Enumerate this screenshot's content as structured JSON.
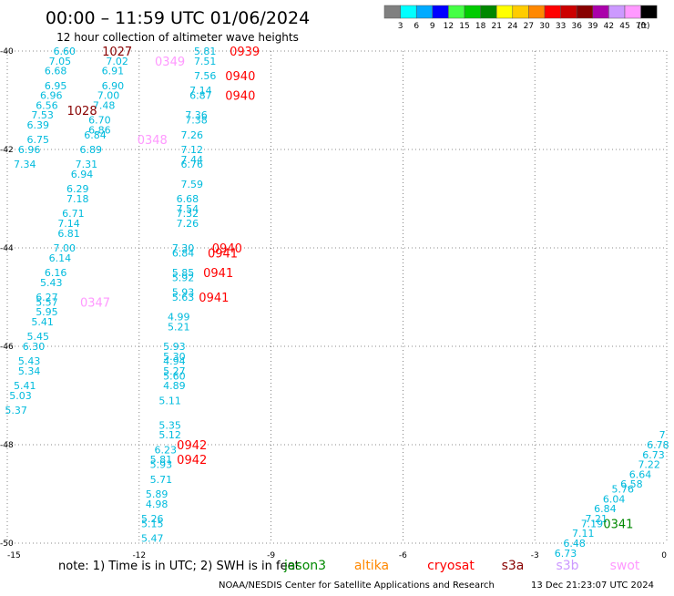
{
  "header": {
    "title": "00:00 – 11:59 UTC 01/06/2024",
    "subtitle": "12 hour collection of altimeter wave heights"
  },
  "legend": {
    "unit": "(ft)",
    "bins": [
      {
        "label": "3",
        "color": "#808080"
      },
      {
        "label": "6",
        "color": "#00ffff"
      },
      {
        "label": "9",
        "color": "#00aaff"
      },
      {
        "label": "12",
        "color": "#0000ff"
      },
      {
        "label": "15",
        "color": "#44ff44"
      },
      {
        "label": "18",
        "color": "#00cc00"
      },
      {
        "label": "21",
        "color": "#008800"
      },
      {
        "label": "24",
        "color": "#ffff00"
      },
      {
        "label": "27",
        "color": "#ffcc00"
      },
      {
        "label": "30",
        "color": "#ff8800"
      },
      {
        "label": "33",
        "color": "#ff0000"
      },
      {
        "label": "36",
        "color": "#cc0000"
      },
      {
        "label": "39",
        "color": "#880000"
      },
      {
        "label": "42",
        "color": "#aa00aa"
      },
      {
        "label": "45",
        "color": "#cc99ff"
      },
      {
        "label": "70",
        "color": "#ff99ff"
      },
      {
        "label": "",
        "color": "#000000"
      }
    ]
  },
  "footer": {
    "note": "note:  1) Time is in UTC; 2) SWH is in feet",
    "credit": "NOAA/NESDIS Center for Satellite Applications and Research",
    "timestamp": "13 Dec 21:23:07 UTC 2024"
  },
  "satellites": [
    {
      "name": "jason3",
      "color": "#008800"
    },
    {
      "name": "altika",
      "color": "#ff8800"
    },
    {
      "name": "cryosat",
      "color": "#ff0000"
    },
    {
      "name": "s3a",
      "color": "#880000"
    },
    {
      "name": "s3b",
      "color": "#cc99ff"
    },
    {
      "name": "swot",
      "color": "#ff99ff"
    }
  ],
  "chart_data": {
    "type": "scatter",
    "xlim": [
      -15,
      0
    ],
    "ylim": [
      -50,
      -40
    ],
    "x_ticks": [
      "-15",
      "-12",
      "-9",
      "-6",
      "-3",
      "0"
    ],
    "y_ticks": [
      "-40",
      "-42",
      "-44",
      "-46",
      "-48",
      "-50"
    ],
    "grid": true,
    "value_color": "#00bbdd",
    "wave_heights": [
      {
        "x": -13.7,
        "y": -40.0,
        "v": "6.60"
      },
      {
        "x": -13.8,
        "y": -40.2,
        "v": "7.05"
      },
      {
        "x": -13.9,
        "y": -40.4,
        "v": "6.68"
      },
      {
        "x": -13.9,
        "y": -40.7,
        "v": "6.95"
      },
      {
        "x": -14.0,
        "y": -40.9,
        "v": "6.96"
      },
      {
        "x": -14.1,
        "y": -41.1,
        "v": "6.56"
      },
      {
        "x": -14.2,
        "y": -41.3,
        "v": "7.53"
      },
      {
        "x": -14.3,
        "y": -41.5,
        "v": "6.39"
      },
      {
        "x": -14.3,
        "y": -41.8,
        "v": "6.75"
      },
      {
        "x": -14.5,
        "y": -42.0,
        "v": "6.96"
      },
      {
        "x": -14.6,
        "y": -42.3,
        "v": "7.34"
      },
      {
        "x": -12.5,
        "y": -40.2,
        "v": "7.02"
      },
      {
        "x": -12.6,
        "y": -40.4,
        "v": "6.91"
      },
      {
        "x": -12.6,
        "y": -40.7,
        "v": "6.90"
      },
      {
        "x": -12.7,
        "y": -40.9,
        "v": "7.00"
      },
      {
        "x": -12.8,
        "y": -41.1,
        "v": "7.48"
      },
      {
        "x": -12.9,
        "y": -41.4,
        "v": "6.70"
      },
      {
        "x": -12.9,
        "y": -41.6,
        "v": "6.86"
      },
      {
        "x": -13.0,
        "y": -41.7,
        "v": "6.84"
      },
      {
        "x": -13.1,
        "y": -42.0,
        "v": "6.89"
      },
      {
        "x": -13.2,
        "y": -42.3,
        "v": "7.31"
      },
      {
        "x": -13.3,
        "y": -42.5,
        "v": "6.94"
      },
      {
        "x": -13.4,
        "y": -42.8,
        "v": "6.29"
      },
      {
        "x": -13.4,
        "y": -43.0,
        "v": "7.18"
      },
      {
        "x": -13.5,
        "y": -43.3,
        "v": "6.71"
      },
      {
        "x": -13.6,
        "y": -43.5,
        "v": "7.14"
      },
      {
        "x": -13.6,
        "y": -43.7,
        "v": "6.81"
      },
      {
        "x": -13.7,
        "y": -44.0,
        "v": "7.00"
      },
      {
        "x": -13.8,
        "y": -44.2,
        "v": "6.14"
      },
      {
        "x": -13.9,
        "y": -44.5,
        "v": "6.16"
      },
      {
        "x": -14.0,
        "y": -44.7,
        "v": "5.43"
      },
      {
        "x": -14.1,
        "y": -45.0,
        "v": "6.27"
      },
      {
        "x": -14.1,
        "y": -45.1,
        "v": "5.57"
      },
      {
        "x": -14.1,
        "y": -45.3,
        "v": "5.95"
      },
      {
        "x": -14.2,
        "y": -45.5,
        "v": "5.41"
      },
      {
        "x": -14.3,
        "y": -45.8,
        "v": "5.45"
      },
      {
        "x": -14.4,
        "y": -46.0,
        "v": "6.30"
      },
      {
        "x": -14.5,
        "y": -46.3,
        "v": "5.43"
      },
      {
        "x": -14.5,
        "y": -46.5,
        "v": "5.34"
      },
      {
        "x": -14.6,
        "y": -46.8,
        "v": "5.41"
      },
      {
        "x": -14.7,
        "y": -47.0,
        "v": "5.03"
      },
      {
        "x": -14.8,
        "y": -47.3,
        "v": "5.37"
      },
      {
        "x": -10.5,
        "y": -40.0,
        "v": "5.81"
      },
      {
        "x": -10.5,
        "y": -40.2,
        "v": "7.51"
      },
      {
        "x": -10.5,
        "y": -40.5,
        "v": "7.56"
      },
      {
        "x": -10.6,
        "y": -40.8,
        "v": "7.14"
      },
      {
        "x": -10.6,
        "y": -40.9,
        "v": "6.87"
      },
      {
        "x": -10.7,
        "y": -41.3,
        "v": "7.36"
      },
      {
        "x": -10.7,
        "y": -41.4,
        "v": "7.38"
      },
      {
        "x": -10.8,
        "y": -41.7,
        "v": "7.26"
      },
      {
        "x": -10.8,
        "y": -42.0,
        "v": "7.12"
      },
      {
        "x": -10.8,
        "y": -42.2,
        "v": "7.44"
      },
      {
        "x": -10.8,
        "y": -42.3,
        "v": "6.76"
      },
      {
        "x": -10.8,
        "y": -42.7,
        "v": "7.59"
      },
      {
        "x": -10.9,
        "y": -43.0,
        "v": "6.68"
      },
      {
        "x": -10.9,
        "y": -43.2,
        "v": "7.54"
      },
      {
        "x": -10.9,
        "y": -43.3,
        "v": "7.32"
      },
      {
        "x": -10.9,
        "y": -43.5,
        "v": "7.26"
      },
      {
        "x": -11.0,
        "y": -44.0,
        "v": "7.30"
      },
      {
        "x": -11.0,
        "y": -44.1,
        "v": "6.84"
      },
      {
        "x": -11.0,
        "y": -44.5,
        "v": "5.85"
      },
      {
        "x": -11.0,
        "y": -44.6,
        "v": "5.92"
      },
      {
        "x": -11.0,
        "y": -44.9,
        "v": "5.93"
      },
      {
        "x": -11.0,
        "y": -45.0,
        "v": "5.63"
      },
      {
        "x": -11.1,
        "y": -45.4,
        "v": "4.99"
      },
      {
        "x": -11.1,
        "y": -45.6,
        "v": "5.21"
      },
      {
        "x": -11.2,
        "y": -46.0,
        "v": "5.93"
      },
      {
        "x": -11.2,
        "y": -46.2,
        "v": "5.30"
      },
      {
        "x": -11.2,
        "y": -46.3,
        "v": "4.94"
      },
      {
        "x": -11.2,
        "y": -46.5,
        "v": "5.27"
      },
      {
        "x": -11.2,
        "y": -46.6,
        "v": "5.60"
      },
      {
        "x": -11.2,
        "y": -46.8,
        "v": "4.89"
      },
      {
        "x": -11.3,
        "y": -47.1,
        "v": "5.11"
      },
      {
        "x": -11.3,
        "y": -47.6,
        "v": "5.35"
      },
      {
        "x": -11.3,
        "y": -47.8,
        "v": "5.12"
      },
      {
        "x": -11.4,
        "y": -48.1,
        "v": "6.23"
      },
      {
        "x": -11.5,
        "y": -48.3,
        "v": "5.81"
      },
      {
        "x": -11.5,
        "y": -48.4,
        "v": "5.93"
      },
      {
        "x": -11.5,
        "y": -48.7,
        "v": "5.71"
      },
      {
        "x": -11.6,
        "y": -49.0,
        "v": "5.89"
      },
      {
        "x": -11.6,
        "y": -49.2,
        "v": "4.98"
      },
      {
        "x": -11.7,
        "y": -49.5,
        "v": "5.26"
      },
      {
        "x": -11.7,
        "y": -49.6,
        "v": "5.15"
      },
      {
        "x": -11.7,
        "y": -49.9,
        "v": "5.47"
      },
      {
        "x": -0.1,
        "y": -47.8,
        "v": "7"
      },
      {
        "x": -0.2,
        "y": -48.0,
        "v": "6.78"
      },
      {
        "x": -0.3,
        "y": -48.2,
        "v": "6.73"
      },
      {
        "x": -0.4,
        "y": -48.4,
        "v": "7.22"
      },
      {
        "x": -0.6,
        "y": -48.6,
        "v": "6.64"
      },
      {
        "x": -0.8,
        "y": -48.8,
        "v": "6.58"
      },
      {
        "x": -1.0,
        "y": -48.9,
        "v": "5.76"
      },
      {
        "x": -1.2,
        "y": -49.1,
        "v": "6.04"
      },
      {
        "x": -1.4,
        "y": -49.3,
        "v": "6.84"
      },
      {
        "x": -1.6,
        "y": -49.5,
        "v": "7.21"
      },
      {
        "x": -1.7,
        "y": -49.6,
        "v": "7.19"
      },
      {
        "x": -1.9,
        "y": -49.8,
        "v": "7.11"
      },
      {
        "x": -2.1,
        "y": -50.0,
        "v": "6.48"
      },
      {
        "x": -2.3,
        "y": -50.2,
        "v": "6.73"
      }
    ],
    "pass_times": [
      {
        "x": -12.5,
        "y": -40.0,
        "label": "1027",
        "sat": "s3a"
      },
      {
        "x": -13.3,
        "y": -41.2,
        "label": "1028",
        "sat": "s3a"
      },
      {
        "x": -11.3,
        "y": -40.2,
        "label": "0349",
        "sat": "swot"
      },
      {
        "x": -11.7,
        "y": -41.8,
        "label": "0348",
        "sat": "swot"
      },
      {
        "x": -13.0,
        "y": -45.1,
        "label": "0347",
        "sat": "swot"
      },
      {
        "x": -9.6,
        "y": -40.0,
        "label": "0939",
        "sat": "cryosat"
      },
      {
        "x": -9.7,
        "y": -40.5,
        "label": "0940",
        "sat": "cryosat"
      },
      {
        "x": -9.7,
        "y": -40.9,
        "label": "0940",
        "sat": "cryosat"
      },
      {
        "x": -10.0,
        "y": -44.0,
        "label": "0940",
        "sat": "cryosat"
      },
      {
        "x": -10.1,
        "y": -44.1,
        "label": "0941",
        "sat": "cryosat"
      },
      {
        "x": -10.2,
        "y": -44.5,
        "label": "0941",
        "sat": "cryosat"
      },
      {
        "x": -10.3,
        "y": -45.0,
        "label": "0941",
        "sat": "cryosat"
      },
      {
        "x": -10.8,
        "y": -48.0,
        "label": "0942",
        "sat": "cryosat"
      },
      {
        "x": -10.8,
        "y": -48.3,
        "label": "0942",
        "sat": "cryosat"
      },
      {
        "x": -1.1,
        "y": -49.6,
        "label": "0341",
        "sat": "jason3"
      }
    ]
  }
}
